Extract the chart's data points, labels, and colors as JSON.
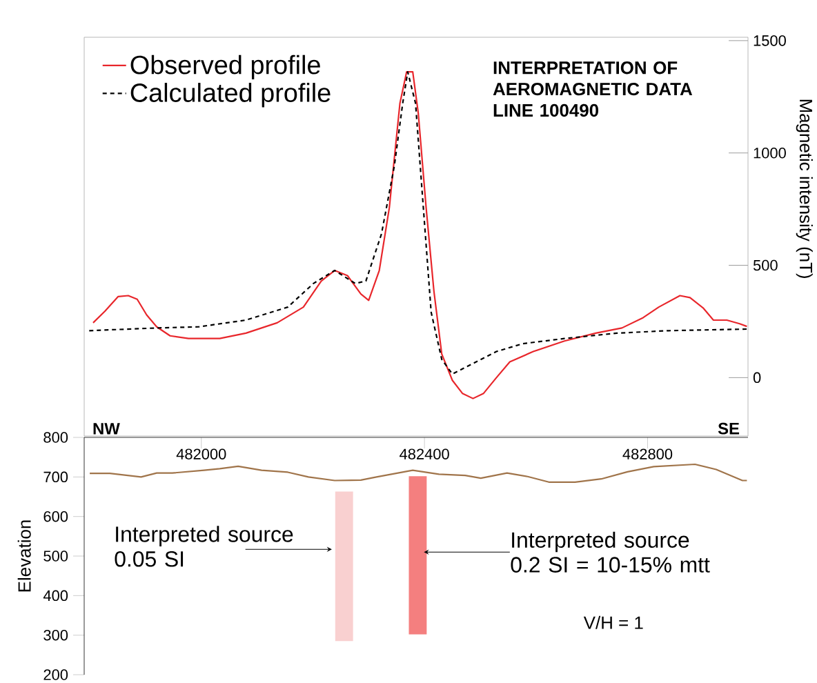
{
  "chart_data": [
    {
      "type": "line",
      "title": "INTERPRETATION OF AEROMAGNETIC DATA LINE 100490",
      "ylabel": "Magnetic intensity (nT)",
      "xlim": [
        481790,
        482980
      ],
      "ylim": [
        -260,
        1515
      ],
      "yticks": [
        0,
        500,
        1000,
        1500
      ],
      "tick_labels": "y",
      "legend": "top left",
      "annotations": [
        "NW",
        "SE"
      ],
      "series": [
        {
          "name": "Observed profile",
          "color": "#e8262b",
          "line_style": "solid",
          "x": [
            481806,
            481827,
            481851,
            481869,
            481885,
            481902,
            481920,
            481944,
            481977,
            482033,
            482080,
            482136,
            482183,
            482215,
            482239,
            482262,
            482286,
            482300,
            482319,
            482337,
            482356,
            482368,
            482379,
            482389,
            482403,
            482417,
            482431,
            482450,
            482468,
            482487,
            482506,
            482529,
            482553,
            482595,
            482651,
            482707,
            482754,
            482792,
            482820,
            482858,
            482876,
            482900,
            482918,
            482942,
            482965,
            482978
          ],
          "values": [
            244,
            295,
            361,
            365,
            349,
            279,
            226,
            186,
            174,
            174,
            198,
            244,
            314,
            430,
            477,
            454,
            372,
            344,
            477,
            756,
            1221,
            1361,
            1361,
            1175,
            756,
            384,
            105,
            -12,
            -70,
            -93,
            -70,
            0,
            70,
            116,
            163,
            198,
            221,
            267,
            314,
            365,
            356,
            309,
            256,
            256,
            240,
            228
          ]
        },
        {
          "name": "Calculated profile",
          "color": "#000000",
          "line_style": "dashed",
          "x": [
            481799,
            481920,
            481995,
            482080,
            482155,
            482201,
            482239,
            482276,
            482295,
            482323,
            482346,
            482361,
            482370,
            482384,
            482398,
            482412,
            482431,
            482450,
            482483,
            482529,
            482576,
            482651,
            482745,
            482838,
            482978
          ],
          "values": [
            209,
            221,
            226,
            256,
            314,
            419,
            477,
            419,
            430,
            640,
            942,
            1221,
            1361,
            1221,
            756,
            291,
            81,
            16,
            58,
            116,
            151,
            174,
            198,
            209,
            216
          ]
        }
      ]
    },
    {
      "type": "line",
      "ylabel": "Elevation",
      "xlim": [
        481790,
        482980
      ],
      "xticks": [
        482000,
        482400,
        482800
      ],
      "ylim": [
        200,
        800
      ],
      "yticks": [
        200,
        300,
        400,
        500,
        600,
        700,
        800
      ],
      "annotations": [
        {
          "text": "Interpreted source 0.05 SI",
          "x": 482234,
          "y": 517
        },
        {
          "text": "Interpreted source 0.2 SI = 10-15% mtt",
          "x": 482399,
          "y": 510
        },
        "V/H = 1"
      ],
      "series": [
        {
          "color": "#a0744a",
          "x": [
            481800,
            481813,
            481836,
            481892,
            481920,
            481948,
            482005,
            482033,
            482066,
            482108,
            482155,
            482192,
            482239,
            482286,
            482314,
            482379,
            482426,
            482473,
            482501,
            482548,
            482585,
            482623,
            482670,
            482717,
            482764,
            482811,
            482885,
            482923,
            482970,
            482978
          ],
          "values": [
            709,
            709,
            709,
            700,
            710,
            710,
            717,
            721,
            727,
            717,
            712,
            700,
            691,
            692,
            700,
            717,
            707,
            704,
            697,
            710,
            701,
            687,
            687,
            695,
            713,
            726,
            732,
            719,
            691,
            691
          ]
        },
        {
          "type": "bar",
          "color": "#f9d0d0",
          "x": [
            482256
          ],
          "base": [
            285
          ],
          "values": [
            378
          ]
        },
        {
          "type": "bar",
          "color": "#f47f7f",
          "x": [
            482388
          ],
          "base": [
            302
          ],
          "values": [
            400
          ]
        }
      ]
    }
  ]
}
